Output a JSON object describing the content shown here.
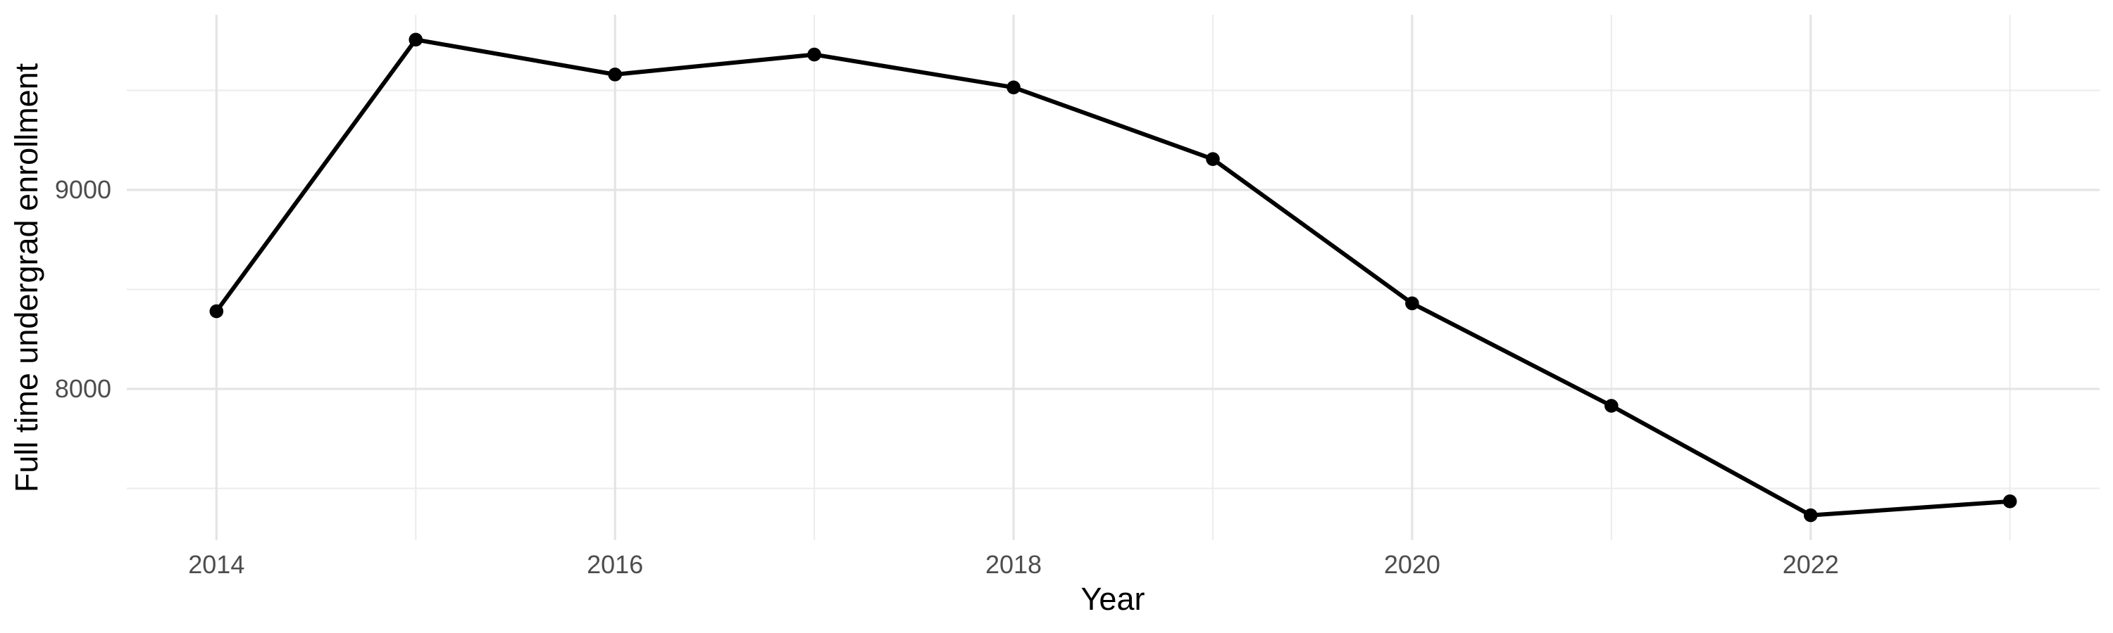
{
  "chart_data": {
    "type": "line",
    "title": "",
    "xlabel": "Year",
    "ylabel": "Full time undergrad enrollment",
    "x": [
      2014,
      2015,
      2016,
      2017,
      2018,
      2019,
      2020,
      2021,
      2022,
      2023
    ],
    "series": [
      {
        "name": "Full time undergrad enrollment",
        "values": [
          8390,
          9755,
          9580,
          9680,
          9515,
          9155,
          8430,
          7915,
          7365,
          7435
        ]
      }
    ],
    "x_major_ticks": [
      2014,
      2016,
      2018,
      2020,
      2022
    ],
    "x_minor_gridlines": [
      2015,
      2017,
      2019,
      2021,
      2023
    ],
    "y_major_ticks": [
      8000,
      9000
    ],
    "y_minor_gridlines": [
      7500,
      8500,
      9500
    ],
    "xlim": [
      2013.55,
      2023.45
    ],
    "ylim": [
      7240,
      9880
    ],
    "grid": "major and minor, no axis lines, no legend",
    "legend_position": "none",
    "marker": "filled circle",
    "colors": {
      "line": "#000000",
      "point": "#000000",
      "grid_major": "#E4E4E4",
      "grid_minor": "#EDEDED",
      "tick_label": "#4D4D4D",
      "axis_title": "#000000",
      "background": "#FFFFFF"
    }
  }
}
